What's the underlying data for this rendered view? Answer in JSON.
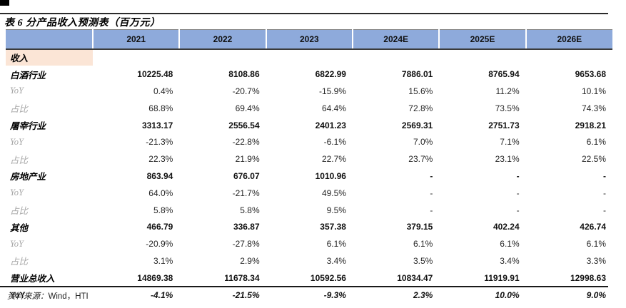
{
  "page": {
    "title": "表 6 分产品收入预测表（百万元）",
    "source_prefix": "资料来源：",
    "source_text": "Wind，HTI"
  },
  "table": {
    "corner_label": "",
    "columns": [
      "2021",
      "2022",
      "2023",
      "2024E",
      "2025E",
      "2026E"
    ],
    "rows": [
      {
        "label": "收入",
        "type": "section",
        "values": [
          "",
          "",
          "",
          "",
          "",
          ""
        ]
      },
      {
        "label": "白酒行业",
        "type": "category",
        "values": [
          "10225.48",
          "8108.86",
          "6822.99",
          "7886.01",
          "8765.94",
          "9653.68"
        ]
      },
      {
        "label": "YoY",
        "type": "sub",
        "values": [
          "0.4%",
          "-20.7%",
          "-15.9%",
          "15.6%",
          "11.2%",
          "10.1%"
        ]
      },
      {
        "label": "占比",
        "type": "sub",
        "values": [
          "68.8%",
          "69.4%",
          "64.4%",
          "72.8%",
          "73.5%",
          "74.3%"
        ]
      },
      {
        "label": "屠宰行业",
        "type": "category",
        "values": [
          "3313.17",
          "2556.54",
          "2401.23",
          "2569.31",
          "2751.73",
          "2918.21"
        ]
      },
      {
        "label": "YoY",
        "type": "sub",
        "values": [
          "-21.3%",
          "-22.8%",
          "-6.1%",
          "7.0%",
          "7.1%",
          "6.1%"
        ]
      },
      {
        "label": "占比",
        "type": "sub",
        "values": [
          "22.3%",
          "21.9%",
          "22.7%",
          "23.7%",
          "23.1%",
          "22.5%"
        ]
      },
      {
        "label": "房地产业",
        "type": "category",
        "values": [
          "863.94",
          "676.07",
          "1010.96",
          "-",
          "-",
          "-"
        ]
      },
      {
        "label": "YoY",
        "type": "sub",
        "values": [
          "64.0%",
          "-21.7%",
          "49.5%",
          "-",
          "-",
          "-"
        ]
      },
      {
        "label": "占比",
        "type": "sub",
        "values": [
          "5.8%",
          "5.8%",
          "9.5%",
          "-",
          "-",
          "-"
        ]
      },
      {
        "label": "其他",
        "type": "category",
        "values": [
          "466.79",
          "336.87",
          "357.38",
          "379.15",
          "402.24",
          "426.74"
        ]
      },
      {
        "label": "YoY",
        "type": "sub",
        "values": [
          "-20.9%",
          "-27.8%",
          "6.1%",
          "6.1%",
          "6.1%",
          "6.1%"
        ]
      },
      {
        "label": "占比",
        "type": "sub",
        "values": [
          "3.1%",
          "2.9%",
          "3.4%",
          "3.5%",
          "3.4%",
          "3.3%"
        ]
      },
      {
        "label": "营业总收入",
        "type": "total",
        "values": [
          "14869.38",
          "11678.34",
          "10592.56",
          "10834.47",
          "11919.91",
          "12998.63"
        ]
      },
      {
        "label": "YoY",
        "type": "total_yoy",
        "values": [
          "-4.1%",
          "-21.5%",
          "-9.3%",
          "2.3%",
          "10.0%",
          "9.0%"
        ]
      }
    ]
  },
  "colors": {
    "header_bg": "#8EAADB",
    "section_bg": "#FBE5D6",
    "sub_label": "#A6A6A6"
  }
}
